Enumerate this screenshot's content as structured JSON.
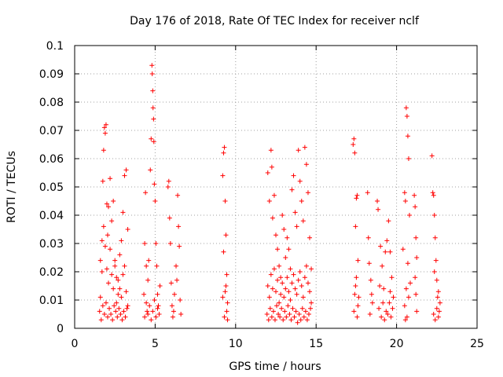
{
  "chart_data": {
    "type": "scatter",
    "title": "Day 176 of 2018, Rate Of TEC Index for receiver nclf",
    "xlabel": "GPS time / hours",
    "ylabel": "ROTI / TECUs",
    "xlim": [
      0,
      25
    ],
    "ylim": [
      0,
      0.1
    ],
    "xticks": [
      0,
      5,
      10,
      15,
      20,
      25
    ],
    "xtick_labels": [
      "0",
      "5",
      "10",
      "15",
      "20",
      "25"
    ],
    "yticks": [
      0,
      0.01,
      0.02,
      0.03,
      0.04,
      0.05,
      0.06,
      0.07,
      0.08,
      0.09,
      0.1
    ],
    "ytick_labels": [
      "0",
      "0.01",
      "0.02",
      "0.03",
      "0.04",
      "0.05",
      "0.06",
      "0.07",
      "0.08",
      "0.09",
      "0.1"
    ],
    "grid": true,
    "marker": "+",
    "color": "#ff0000",
    "series": [
      {
        "name": "ROTI",
        "points": [
          [
            1.6,
            0.011
          ],
          [
            1.7,
            0.02
          ],
          [
            1.75,
            0.052
          ],
          [
            1.8,
            0.063
          ],
          [
            1.85,
            0.071
          ],
          [
            1.9,
            0.069
          ],
          [
            1.95,
            0.072
          ],
          [
            2.0,
            0.044
          ],
          [
            2.05,
            0.033
          ],
          [
            2.1,
            0.043
          ],
          [
            2.2,
            0.053
          ],
          [
            2.3,
            0.038
          ],
          [
            2.4,
            0.045
          ],
          [
            2.5,
            0.024
          ],
          [
            2.6,
            0.018
          ],
          [
            2.7,
            0.012
          ],
          [
            2.8,
            0.026
          ],
          [
            2.9,
            0.031
          ],
          [
            3.0,
            0.041
          ],
          [
            3.1,
            0.054
          ],
          [
            3.2,
            0.056
          ],
          [
            3.3,
            0.035
          ],
          [
            1.6,
            0.024
          ],
          [
            1.7,
            0.031
          ],
          [
            1.8,
            0.036
          ],
          [
            1.9,
            0.029
          ],
          [
            2.0,
            0.021
          ],
          [
            2.1,
            0.016
          ],
          [
            2.2,
            0.028
          ],
          [
            2.3,
            0.019
          ],
          [
            2.4,
            0.014
          ],
          [
            2.5,
            0.022
          ],
          [
            2.6,
            0.009
          ],
          [
            2.7,
            0.017
          ],
          [
            2.8,
            0.014
          ],
          [
            2.9,
            0.011
          ],
          [
            3.0,
            0.019
          ],
          [
            3.1,
            0.022
          ],
          [
            3.2,
            0.013
          ],
          [
            3.3,
            0.008
          ],
          [
            1.55,
            0.006
          ],
          [
            1.65,
            0.003
          ],
          [
            1.75,
            0.008
          ],
          [
            1.85,
            0.005
          ],
          [
            1.95,
            0.009
          ],
          [
            2.05,
            0.004
          ],
          [
            2.15,
            0.007
          ],
          [
            2.25,
            0.005
          ],
          [
            2.35,
            0.003
          ],
          [
            2.45,
            0.008
          ],
          [
            2.55,
            0.006
          ],
          [
            2.65,
            0.004
          ],
          [
            2.75,
            0.007
          ],
          [
            2.85,
            0.005
          ],
          [
            2.95,
            0.003
          ],
          [
            3.05,
            0.006
          ],
          [
            3.15,
            0.004
          ],
          [
            3.25,
            0.007
          ],
          [
            4.3,
            0.012
          ],
          [
            4.35,
            0.03
          ],
          [
            4.4,
            0.048
          ],
          [
            4.45,
            0.022
          ],
          [
            4.5,
            0.006
          ],
          [
            4.55,
            0.017
          ],
          [
            4.6,
            0.024
          ],
          [
            4.7,
            0.056
          ],
          [
            4.75,
            0.067
          ],
          [
            4.8,
            0.093
          ],
          [
            4.82,
            0.09
          ],
          [
            4.85,
            0.084
          ],
          [
            4.87,
            0.078
          ],
          [
            4.9,
            0.074
          ],
          [
            4.92,
            0.066
          ],
          [
            4.95,
            0.051
          ],
          [
            5.0,
            0.045
          ],
          [
            5.05,
            0.03
          ],
          [
            5.1,
            0.022
          ],
          [
            5.15,
            0.012
          ],
          [
            5.2,
            0.008
          ],
          [
            5.3,
            0.015
          ],
          [
            4.35,
            0.004
          ],
          [
            4.45,
            0.009
          ],
          [
            4.55,
            0.005
          ],
          [
            4.65,
            0.008
          ],
          [
            4.75,
            0.003
          ],
          [
            4.85,
            0.006
          ],
          [
            4.95,
            0.01
          ],
          [
            5.05,
            0.004
          ],
          [
            5.15,
            0.007
          ],
          [
            5.25,
            0.005
          ],
          [
            5.8,
            0.05
          ],
          [
            5.85,
            0.052
          ],
          [
            5.9,
            0.039
          ],
          [
            5.95,
            0.03
          ],
          [
            6.0,
            0.016
          ],
          [
            6.05,
            0.008
          ],
          [
            6.1,
            0.004
          ],
          [
            6.2,
            0.012
          ],
          [
            6.3,
            0.022
          ],
          [
            6.4,
            0.047
          ],
          [
            6.45,
            0.036
          ],
          [
            6.5,
            0.029
          ],
          [
            6.55,
            0.01
          ],
          [
            6.6,
            0.005
          ],
          [
            6.15,
            0.006
          ],
          [
            6.35,
            0.017
          ],
          [
            9.2,
            0.054
          ],
          [
            9.25,
            0.062
          ],
          [
            9.3,
            0.064
          ],
          [
            9.35,
            0.045
          ],
          [
            9.4,
            0.033
          ],
          [
            9.45,
            0.019
          ],
          [
            9.5,
            0.009
          ],
          [
            9.25,
            0.027
          ],
          [
            9.35,
            0.013
          ],
          [
            9.3,
            0.004
          ],
          [
            9.45,
            0.006
          ],
          [
            9.2,
            0.011
          ],
          [
            9.4,
            0.015
          ],
          [
            9.5,
            0.003
          ],
          [
            12.0,
            0.055
          ],
          [
            12.1,
            0.045
          ],
          [
            12.2,
            0.063
          ],
          [
            12.25,
            0.057
          ],
          [
            12.3,
            0.039
          ],
          [
            12.4,
            0.047
          ],
          [
            12.5,
            0.033
          ],
          [
            12.6,
            0.028
          ],
          [
            12.7,
            0.022
          ],
          [
            12.8,
            0.018
          ],
          [
            12.9,
            0.04
          ],
          [
            13.0,
            0.035
          ],
          [
            13.1,
            0.025
          ],
          [
            13.2,
            0.032
          ],
          [
            13.3,
            0.028
          ],
          [
            13.4,
            0.021
          ],
          [
            13.5,
            0.049
          ],
          [
            13.6,
            0.054
          ],
          [
            13.7,
            0.041
          ],
          [
            13.8,
            0.036
          ],
          [
            13.9,
            0.063
          ],
          [
            14.0,
            0.052
          ],
          [
            14.1,
            0.045
          ],
          [
            14.2,
            0.038
          ],
          [
            14.3,
            0.064
          ],
          [
            14.4,
            0.058
          ],
          [
            14.5,
            0.048
          ],
          [
            14.6,
            0.032
          ],
          [
            14.7,
            0.021
          ],
          [
            12.0,
            0.015
          ],
          [
            12.1,
            0.011
          ],
          [
            12.2,
            0.019
          ],
          [
            12.3,
            0.014
          ],
          [
            12.4,
            0.021
          ],
          [
            12.5,
            0.013
          ],
          [
            12.6,
            0.017
          ],
          [
            12.7,
            0.009
          ],
          [
            12.8,
            0.012
          ],
          [
            12.9,
            0.016
          ],
          [
            13.0,
            0.011
          ],
          [
            13.1,
            0.014
          ],
          [
            13.2,
            0.018
          ],
          [
            13.3,
            0.013
          ],
          [
            13.4,
            0.01
          ],
          [
            13.5,
            0.016
          ],
          [
            13.6,
            0.019
          ],
          [
            13.7,
            0.014
          ],
          [
            13.8,
            0.012
          ],
          [
            13.9,
            0.017
          ],
          [
            14.0,
            0.02
          ],
          [
            14.1,
            0.015
          ],
          [
            14.2,
            0.011
          ],
          [
            14.3,
            0.018
          ],
          [
            14.4,
            0.022
          ],
          [
            14.5,
            0.016
          ],
          [
            14.6,
            0.013
          ],
          [
            14.7,
            0.009
          ],
          [
            11.95,
            0.005
          ],
          [
            12.05,
            0.003
          ],
          [
            12.15,
            0.007
          ],
          [
            12.25,
            0.004
          ],
          [
            12.35,
            0.006
          ],
          [
            12.45,
            0.003
          ],
          [
            12.55,
            0.008
          ],
          [
            12.65,
            0.005
          ],
          [
            12.75,
            0.004
          ],
          [
            12.85,
            0.007
          ],
          [
            12.95,
            0.003
          ],
          [
            13.05,
            0.006
          ],
          [
            13.15,
            0.004
          ],
          [
            13.25,
            0.008
          ],
          [
            13.35,
            0.005
          ],
          [
            13.45,
            0.003
          ],
          [
            13.55,
            0.007
          ],
          [
            13.65,
            0.004
          ],
          [
            13.75,
            0.006
          ],
          [
            13.85,
            0.002
          ],
          [
            13.95,
            0.005
          ],
          [
            14.05,
            0.003
          ],
          [
            14.15,
            0.007
          ],
          [
            14.25,
            0.004
          ],
          [
            14.35,
            0.006
          ],
          [
            14.45,
            0.003
          ],
          [
            14.55,
            0.005
          ],
          [
            14.65,
            0.007
          ],
          [
            17.3,
            0.065
          ],
          [
            17.35,
            0.067
          ],
          [
            17.4,
            0.062
          ],
          [
            17.5,
            0.046
          ],
          [
            17.55,
            0.047
          ],
          [
            17.45,
            0.036
          ],
          [
            17.6,
            0.024
          ],
          [
            17.5,
            0.018
          ],
          [
            17.4,
            0.012
          ],
          [
            17.6,
            0.008
          ],
          [
            17.35,
            0.006
          ],
          [
            17.55,
            0.004
          ],
          [
            17.45,
            0.015
          ],
          [
            17.65,
            0.011
          ],
          [
            18.2,
            0.048
          ],
          [
            18.25,
            0.032
          ],
          [
            18.3,
            0.023
          ],
          [
            18.4,
            0.017
          ],
          [
            18.5,
            0.009
          ],
          [
            18.35,
            0.005
          ],
          [
            18.45,
            0.012
          ],
          [
            18.8,
            0.045
          ],
          [
            18.85,
            0.042
          ],
          [
            19.0,
            0.029
          ],
          [
            19.1,
            0.022
          ],
          [
            19.2,
            0.014
          ],
          [
            19.3,
            0.027
          ],
          [
            19.4,
            0.031
          ],
          [
            19.5,
            0.038
          ],
          [
            19.6,
            0.027
          ],
          [
            19.7,
            0.018
          ],
          [
            19.8,
            0.011
          ],
          [
            18.9,
            0.007
          ],
          [
            19.05,
            0.004
          ],
          [
            19.15,
            0.009
          ],
          [
            19.25,
            0.003
          ],
          [
            19.35,
            0.006
          ],
          [
            19.45,
            0.005
          ],
          [
            19.55,
            0.009
          ],
          [
            19.65,
            0.004
          ],
          [
            19.75,
            0.007
          ],
          [
            18.95,
            0.015
          ],
          [
            19.6,
            0.013
          ],
          [
            20.4,
            0.028
          ],
          [
            20.5,
            0.048
          ],
          [
            20.55,
            0.045
          ],
          [
            20.6,
            0.078
          ],
          [
            20.65,
            0.075
          ],
          [
            20.7,
            0.068
          ],
          [
            20.75,
            0.06
          ],
          [
            20.8,
            0.04
          ],
          [
            20.7,
            0.023
          ],
          [
            20.6,
            0.014
          ],
          [
            20.5,
            0.008
          ],
          [
            20.65,
            0.004
          ],
          [
            20.75,
            0.011
          ],
          [
            20.55,
            0.003
          ],
          [
            20.85,
            0.016
          ],
          [
            21.1,
            0.047
          ],
          [
            21.15,
            0.043
          ],
          [
            21.2,
            0.032
          ],
          [
            21.25,
            0.025
          ],
          [
            21.15,
            0.018
          ],
          [
            21.2,
            0.012
          ],
          [
            21.25,
            0.006
          ],
          [
            22.2,
            0.061
          ],
          [
            22.25,
            0.048
          ],
          [
            22.3,
            0.047
          ],
          [
            22.35,
            0.04
          ],
          [
            22.4,
            0.032
          ],
          [
            22.45,
            0.024
          ],
          [
            22.5,
            0.017
          ],
          [
            22.6,
            0.013
          ],
          [
            22.7,
            0.009
          ],
          [
            22.3,
            0.005
          ],
          [
            22.4,
            0.003
          ],
          [
            22.5,
            0.007
          ],
          [
            22.6,
            0.004
          ],
          [
            22.65,
            0.006
          ],
          [
            22.55,
            0.011
          ],
          [
            22.35,
            0.02
          ]
        ]
      }
    ]
  }
}
